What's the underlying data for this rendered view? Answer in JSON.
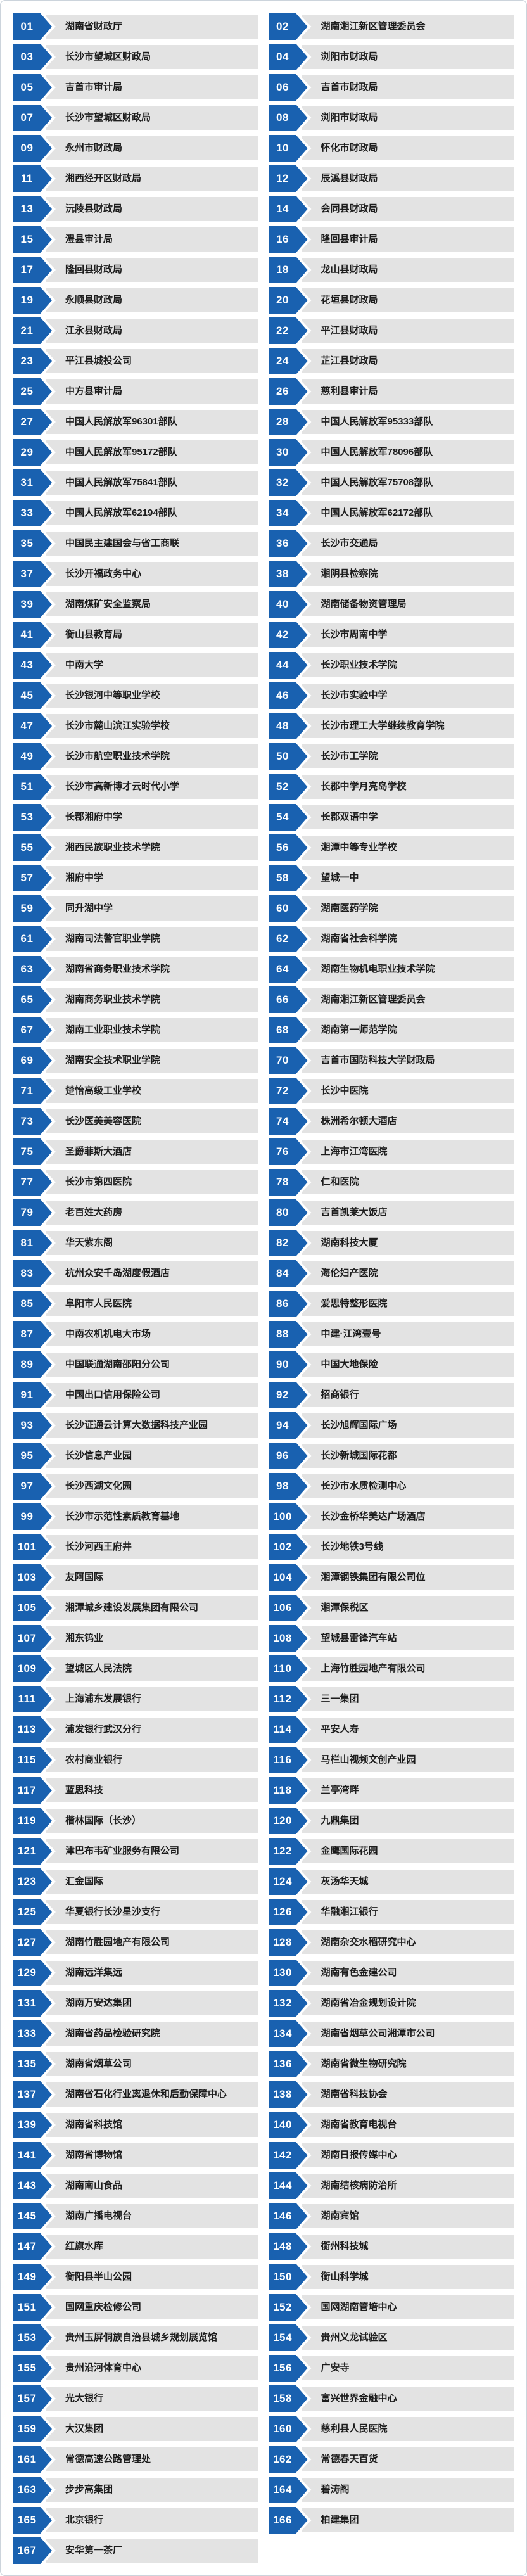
{
  "colors": {
    "badge_blue": "#1961b0",
    "bar_gray": "#e3e3e3",
    "page_border": "#ccd4dc",
    "number_text": "#ffffff",
    "label_text": "#1c1c1c"
  },
  "items": [
    {
      "num": "01",
      "label": "湖南省财政厅"
    },
    {
      "num": "02",
      "label": "湖南湘江新区管理委员会"
    },
    {
      "num": "03",
      "label": "长沙市望城区财政局"
    },
    {
      "num": "04",
      "label": "浏阳市财政局"
    },
    {
      "num": "05",
      "label": "吉首市审计局"
    },
    {
      "num": "06",
      "label": "吉首市财政局"
    },
    {
      "num": "07",
      "label": "长沙市望城区财政局"
    },
    {
      "num": "08",
      "label": "浏阳市财政局"
    },
    {
      "num": "09",
      "label": "永州市财政局"
    },
    {
      "num": "10",
      "label": "怀化市财政局"
    },
    {
      "num": "11",
      "label": "湘西经开区财政局"
    },
    {
      "num": "12",
      "label": "辰溪县财政局"
    },
    {
      "num": "13",
      "label": "沅陵县财政局"
    },
    {
      "num": "14",
      "label": "会同县财政局"
    },
    {
      "num": "15",
      "label": "澧县审计局"
    },
    {
      "num": "16",
      "label": "隆回县审计局"
    },
    {
      "num": "17",
      "label": "隆回县财政局"
    },
    {
      "num": "18",
      "label": "龙山县财政局"
    },
    {
      "num": "19",
      "label": "永顺县财政局"
    },
    {
      "num": "20",
      "label": "花垣县财政局"
    },
    {
      "num": "21",
      "label": "江永县财政局"
    },
    {
      "num": "22",
      "label": "平江县财政局"
    },
    {
      "num": "23",
      "label": "平江县城投公司"
    },
    {
      "num": "24",
      "label": "芷江县财政局"
    },
    {
      "num": "25",
      "label": "中方县审计局"
    },
    {
      "num": "26",
      "label": "慈利县审计局"
    },
    {
      "num": "27",
      "label": "中国人民解放军96301部队"
    },
    {
      "num": "28",
      "label": "中国人民解放军95333部队"
    },
    {
      "num": "29",
      "label": "中国人民解放军95172部队"
    },
    {
      "num": "30",
      "label": "中国人民解放军78096部队"
    },
    {
      "num": "31",
      "label": "中国人民解放军75841部队"
    },
    {
      "num": "32",
      "label": "中国人民解放军75708部队"
    },
    {
      "num": "33",
      "label": "中国人民解放军62194部队"
    },
    {
      "num": "34",
      "label": "中国人民解放军62172部队"
    },
    {
      "num": "35",
      "label": "中国民主建国会与省工商联"
    },
    {
      "num": "36",
      "label": "长沙市交通局"
    },
    {
      "num": "37",
      "label": "长沙开福政务中心"
    },
    {
      "num": "38",
      "label": "湘阴县检察院"
    },
    {
      "num": "39",
      "label": "湖南煤矿安全监察局"
    },
    {
      "num": "40",
      "label": "湖南储备物资管理局"
    },
    {
      "num": "41",
      "label": "衡山县教育局"
    },
    {
      "num": "42",
      "label": "长沙市周南中学"
    },
    {
      "num": "43",
      "label": "中南大学"
    },
    {
      "num": "44",
      "label": "长沙职业技术学院"
    },
    {
      "num": "45",
      "label": "长沙银河中等职业学校"
    },
    {
      "num": "46",
      "label": "长沙市实验中学"
    },
    {
      "num": "47",
      "label": "长沙市麓山滨江实验学校"
    },
    {
      "num": "48",
      "label": "长沙市理工大学继续教育学院"
    },
    {
      "num": "49",
      "label": "长沙市航空职业技术学院"
    },
    {
      "num": "50",
      "label": "长沙市工学院"
    },
    {
      "num": "51",
      "label": "长沙市高新博才云时代小学"
    },
    {
      "num": "52",
      "label": "长郡中学月亮岛学校"
    },
    {
      "num": "53",
      "label": "长郡湘府中学"
    },
    {
      "num": "54",
      "label": "长郡双语中学"
    },
    {
      "num": "55",
      "label": "湘西民族职业技术学院"
    },
    {
      "num": "56",
      "label": "湘潭中等专业学校"
    },
    {
      "num": "57",
      "label": "湘府中学"
    },
    {
      "num": "58",
      "label": "望城一中"
    },
    {
      "num": "59",
      "label": "同升湖中学"
    },
    {
      "num": "60",
      "label": "湖南医药学院"
    },
    {
      "num": "61",
      "label": "湖南司法警官职业学院"
    },
    {
      "num": "62",
      "label": "湖南省社会科学院"
    },
    {
      "num": "63",
      "label": "湖南省商务职业技术学院"
    },
    {
      "num": "64",
      "label": "湖南生物机电职业技术学院"
    },
    {
      "num": "65",
      "label": "湖南商务职业技术学院"
    },
    {
      "num": "66",
      "label": "湖南湘江新区管理委员会"
    },
    {
      "num": "67",
      "label": "湖南工业职业技术学院"
    },
    {
      "num": "68",
      "label": "湖南第一师范学院"
    },
    {
      "num": "69",
      "label": "湖南安全技术职业学院"
    },
    {
      "num": "70",
      "label": "吉首市国防科技大学财政局"
    },
    {
      "num": "71",
      "label": "楚怡高级工业学校"
    },
    {
      "num": "72",
      "label": "长沙中医院"
    },
    {
      "num": "73",
      "label": "长沙医美美容医院"
    },
    {
      "num": "74",
      "label": "株洲希尔顿大酒店"
    },
    {
      "num": "75",
      "label": "圣爵菲斯大酒店"
    },
    {
      "num": "76",
      "label": "上海市江湾医院"
    },
    {
      "num": "77",
      "label": "长沙市第四医院"
    },
    {
      "num": "78",
      "label": "仁和医院"
    },
    {
      "num": "79",
      "label": "老百姓大药房"
    },
    {
      "num": "80",
      "label": "吉首凯莱大饭店"
    },
    {
      "num": "81",
      "label": "华天紫东阁"
    },
    {
      "num": "82",
      "label": "湖南科技大厦"
    },
    {
      "num": "83",
      "label": "杭州众安千岛湖度假酒店"
    },
    {
      "num": "84",
      "label": "海伦妇产医院"
    },
    {
      "num": "85",
      "label": "阜阳市人民医院"
    },
    {
      "num": "86",
      "label": "爱思特整形医院"
    },
    {
      "num": "87",
      "label": "中南农机机电大市场"
    },
    {
      "num": "88",
      "label": "中建·江湾壹号"
    },
    {
      "num": "89",
      "label": "中国联通湖南邵阳分公司"
    },
    {
      "num": "90",
      "label": "中国大地保险"
    },
    {
      "num": "91",
      "label": "中国出口信用保险公司"
    },
    {
      "num": "92",
      "label": "招商银行"
    },
    {
      "num": "93",
      "label": "长沙证通云计算大数据科技产业园"
    },
    {
      "num": "94",
      "label": "长沙旭辉国际广场"
    },
    {
      "num": "95",
      "label": "长沙信息产业园"
    },
    {
      "num": "96",
      "label": "长沙新城国际花都"
    },
    {
      "num": "97",
      "label": "长沙西湖文化园"
    },
    {
      "num": "98",
      "label": "长沙市水质检测中心"
    },
    {
      "num": "99",
      "label": "长沙市示范性素质教育基地"
    },
    {
      "num": "100",
      "label": "长沙金桥华美达广场酒店"
    },
    {
      "num": "101",
      "label": "长沙河西王府井"
    },
    {
      "num": "102",
      "label": "长沙地铁3号线"
    },
    {
      "num": "103",
      "label": "友阿国际"
    },
    {
      "num": "104",
      "label": "湘潭钢铁集团有限公司位"
    },
    {
      "num": "105",
      "label": "湘潭城乡建设发展集团有限公司"
    },
    {
      "num": "106",
      "label": "湘潭保税区"
    },
    {
      "num": "107",
      "label": "湘东钨业"
    },
    {
      "num": "108",
      "label": "望城县雷锋汽车站"
    },
    {
      "num": "109",
      "label": "望城区人民法院"
    },
    {
      "num": "110",
      "label": "上海竹胜园地产有限公司"
    },
    {
      "num": "111",
      "label": "上海浦东发展银行"
    },
    {
      "num": "112",
      "label": "三一集团"
    },
    {
      "num": "113",
      "label": "浦发银行武汉分行"
    },
    {
      "num": "114",
      "label": "平安人寿"
    },
    {
      "num": "115",
      "label": "农村商业银行"
    },
    {
      "num": "116",
      "label": "马栏山视频文创产业园"
    },
    {
      "num": "117",
      "label": "蓝思科技"
    },
    {
      "num": "118",
      "label": "兰亭湾畔"
    },
    {
      "num": "119",
      "label": "楷林国际（长沙）"
    },
    {
      "num": "120",
      "label": "九鼎集团"
    },
    {
      "num": "121",
      "label": "津巴布韦矿业服务有限公司"
    },
    {
      "num": "122",
      "label": "金鹰国际花园"
    },
    {
      "num": "123",
      "label": "汇金国际"
    },
    {
      "num": "124",
      "label": "灰汤华天城"
    },
    {
      "num": "125",
      "label": "华夏银行长沙星沙支行"
    },
    {
      "num": "126",
      "label": "华融湘江银行"
    },
    {
      "num": "127",
      "label": "湖南竹胜园地产有限公司"
    },
    {
      "num": "128",
      "label": "湖南杂交水稻研究中心"
    },
    {
      "num": "129",
      "label": "湖南远洋集远"
    },
    {
      "num": "130",
      "label": "湖南有色金建公司"
    },
    {
      "num": "131",
      "label": "湖南万安达集团"
    },
    {
      "num": "132",
      "label": "湖南省冶金规划设计院"
    },
    {
      "num": "133",
      "label": "湖南省药品检验研究院"
    },
    {
      "num": "134",
      "label": "湖南省烟草公司湘潭市公司"
    },
    {
      "num": "135",
      "label": "湖南省烟草公司"
    },
    {
      "num": "136",
      "label": "湖南省微生物研究院"
    },
    {
      "num": "137",
      "label": "湖南省石化行业离退休和后勤保障中心"
    },
    {
      "num": "138",
      "label": "湖南省科技协会"
    },
    {
      "num": "139",
      "label": "湖南省科技馆"
    },
    {
      "num": "140",
      "label": "湖南省教育电视台"
    },
    {
      "num": "141",
      "label": "湖南省博物馆"
    },
    {
      "num": "142",
      "label": "湖南日报传媒中心"
    },
    {
      "num": "143",
      "label": "湖南南山食品"
    },
    {
      "num": "144",
      "label": "湖南结核病防治所"
    },
    {
      "num": "145",
      "label": "湖南广播电视台"
    },
    {
      "num": "146",
      "label": "湖南宾馆"
    },
    {
      "num": "147",
      "label": "红旗水库"
    },
    {
      "num": "148",
      "label": "衡州科技城"
    },
    {
      "num": "149",
      "label": "衡阳县半山公园"
    },
    {
      "num": "150",
      "label": "衡山科学城"
    },
    {
      "num": "151",
      "label": "国网重庆检修公司"
    },
    {
      "num": "152",
      "label": "国网湖南管培中心"
    },
    {
      "num": "153",
      "label": "贵州玉屏侗族自治县城乡规划展览馆"
    },
    {
      "num": "154",
      "label": "贵州义龙试验区"
    },
    {
      "num": "155",
      "label": "贵州沿河体育中心"
    },
    {
      "num": "156",
      "label": "广安寺"
    },
    {
      "num": "157",
      "label": "光大银行"
    },
    {
      "num": "158",
      "label": "富兴世界金融中心"
    },
    {
      "num": "159",
      "label": "大汉集团"
    },
    {
      "num": "160",
      "label": "慈利县人民医院"
    },
    {
      "num": "161",
      "label": "常德高速公路管理处"
    },
    {
      "num": "162",
      "label": "常德春天百货"
    },
    {
      "num": "163",
      "label": "步步高集团"
    },
    {
      "num": "164",
      "label": "碧涛阁"
    },
    {
      "num": "165",
      "label": "北京银行"
    },
    {
      "num": "166",
      "label": "柏建集团"
    },
    {
      "num": "167",
      "label": "安华第一茶厂"
    }
  ]
}
